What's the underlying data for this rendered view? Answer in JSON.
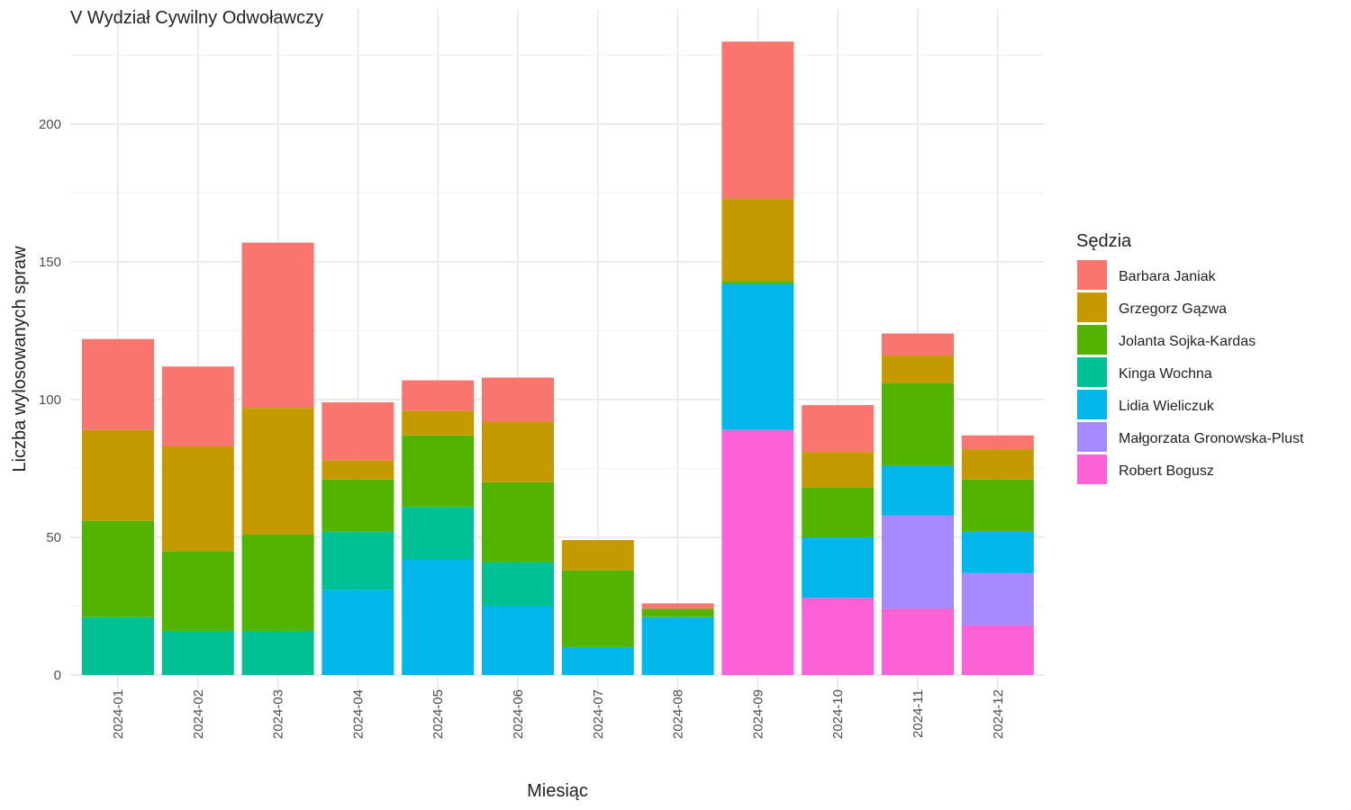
{
  "chart_data": {
    "type": "bar",
    "stacked": true,
    "title": "V Wydział Cywilny Odwoławczy",
    "xlabel": "Miesiąc",
    "ylabel": "Liczba wylosowanych spraw",
    "ylim": [
      0,
      240
    ],
    "yticks": [
      0,
      50,
      100,
      150,
      200
    ],
    "grid": true,
    "legend_position": "right",
    "legend_title": "Sędzia",
    "categories": [
      "2024-01",
      "2024-02",
      "2024-03",
      "2024-04",
      "2024-05",
      "2024-06",
      "2024-07",
      "2024-08",
      "2024-09",
      "2024-10",
      "2024-11",
      "2024-12"
    ],
    "series": [
      {
        "name": "Robert Bogusz",
        "color": "#FC61D5",
        "values": [
          0,
          0,
          0,
          0,
          0,
          0,
          0,
          0,
          89,
          28,
          24,
          18
        ]
      },
      {
        "name": "Małgorzata Gronowska-Plust",
        "color": "#A58AFF",
        "values": [
          0,
          0,
          0,
          0,
          0,
          0,
          0,
          0,
          0,
          0,
          34,
          19
        ]
      },
      {
        "name": "Lidia Wieliczuk",
        "color": "#00B6EB",
        "values": [
          0,
          0,
          0,
          31,
          42,
          25,
          10,
          21,
          53,
          22,
          18,
          15
        ]
      },
      {
        "name": "Kinga Wochna",
        "color": "#00C094",
        "values": [
          21,
          16,
          16,
          21,
          19,
          16,
          0,
          0,
          0,
          0,
          0,
          0
        ]
      },
      {
        "name": "Jolanta Sojka-Kardas",
        "color": "#53B400",
        "values": [
          35,
          29,
          35,
          19,
          26,
          29,
          28,
          3,
          1,
          18,
          30,
          19
        ]
      },
      {
        "name": "Grzegorz Gązwa",
        "color": "#C49A00",
        "values": [
          33,
          38,
          46,
          7,
          9,
          22,
          11,
          0,
          30,
          13,
          10,
          11
        ]
      },
      {
        "name": "Barbara Janiak",
        "color": "#F8766D",
        "values": [
          33,
          29,
          60,
          21,
          11,
          16,
          0,
          2,
          57,
          17,
          8,
          5
        ]
      }
    ],
    "legend_order": [
      "Barbara Janiak",
      "Grzegorz Gązwa",
      "Jolanta Sojka-Kardas",
      "Kinga Wochna",
      "Lidia Wieliczuk",
      "Małgorzata Gronowska-Plust",
      "Robert Bogusz"
    ]
  }
}
